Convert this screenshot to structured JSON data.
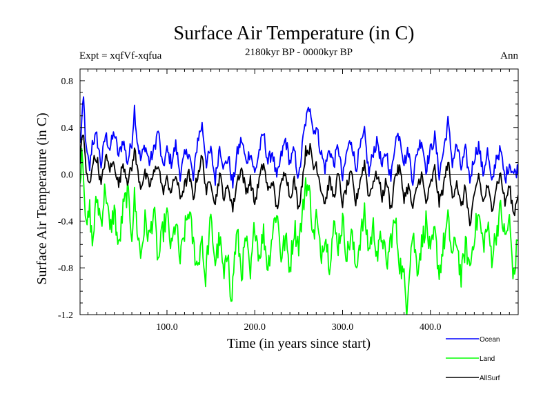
{
  "chart_data": {
    "type": "line",
    "title": "Surface Air Temperature (in C)",
    "subtitle": "2180kyr BP - 0000kyr BP",
    "experiment_label": "Expt = xqfVf-xqfua",
    "season_label": "Ann",
    "xlabel": "Time (in years since start)",
    "ylabel": "Surface Air Temperature (in C)",
    "xlim": [
      1,
      500
    ],
    "ylim": [
      -1.2,
      0.9
    ],
    "xticks": [
      100,
      200,
      300,
      400
    ],
    "xtick_labels": [
      "100.0",
      "200.0",
      "300.0",
      "400.0"
    ],
    "yticks": [
      0.8,
      0.4,
      0.0,
      -0.4,
      -0.8,
      -1.2
    ],
    "ytick_labels": [
      "0.8",
      "0.4",
      "0.0",
      "-0.4",
      "-0.8",
      "-1.2"
    ],
    "zero_line": 0.0,
    "grid": false,
    "legend_position": "bottom-right",
    "series": [
      {
        "name": "Ocean",
        "color": "#0000ff",
        "anchors": [
          [
            1,
            0.25
          ],
          [
            3,
            0.45
          ],
          [
            5,
            0.64
          ],
          [
            8,
            0.2
          ],
          [
            12,
            0.05
          ],
          [
            15,
            0.28
          ],
          [
            20,
            0.32
          ],
          [
            25,
            0.08
          ],
          [
            30,
            0.34
          ],
          [
            35,
            0.22
          ],
          [
            40,
            0.36
          ],
          [
            45,
            0.15
          ],
          [
            50,
            0.3
          ],
          [
            55,
            0.1
          ],
          [
            60,
            0.28
          ],
          [
            63,
            0.57
          ],
          [
            66,
            0.3
          ],
          [
            70,
            0.12
          ],
          [
            75,
            0.25
          ],
          [
            80,
            0.1
          ],
          [
            85,
            0.2
          ],
          [
            90,
            0.38
          ],
          [
            95,
            0.05
          ],
          [
            100,
            0.2
          ],
          [
            105,
            0.1
          ],
          [
            110,
            0.25
          ],
          [
            115,
            0.0
          ],
          [
            120,
            0.15
          ],
          [
            125,
            0.2
          ],
          [
            130,
            -0.05
          ],
          [
            135,
            0.3
          ],
          [
            140,
            0.42
          ],
          [
            145,
            0.1
          ],
          [
            150,
            0.2
          ],
          [
            155,
            -0.05
          ],
          [
            160,
            0.25
          ],
          [
            165,
            0.05
          ],
          [
            170,
            0.15
          ],
          [
            175,
            -0.1
          ],
          [
            180,
            0.18
          ],
          [
            185,
            0.3
          ],
          [
            190,
            0.1
          ],
          [
            195,
            0.2
          ],
          [
            200,
            0.0
          ],
          [
            205,
            0.2
          ],
          [
            210,
            0.35
          ],
          [
            215,
            0.1
          ],
          [
            220,
            0.2
          ],
          [
            225,
            -0.05
          ],
          [
            230,
            0.15
          ],
          [
            235,
            0.3
          ],
          [
            240,
            0.1
          ],
          [
            245,
            0.2
          ],
          [
            250,
            -0.05
          ],
          [
            255,
            0.3
          ],
          [
            258,
            0.45
          ],
          [
            263,
            0.6
          ],
          [
            267,
            0.35
          ],
          [
            270,
            0.42
          ],
          [
            275,
            0.2
          ],
          [
            280,
            0.05
          ],
          [
            285,
            0.22
          ],
          [
            290,
            0.08
          ],
          [
            295,
            0.25
          ],
          [
            300,
            -0.05
          ],
          [
            305,
            0.2
          ],
          [
            310,
            0.3
          ],
          [
            315,
            0.05
          ],
          [
            320,
            0.22
          ],
          [
            325,
            0.35
          ],
          [
            330,
            0.0
          ],
          [
            335,
            0.2
          ],
          [
            340,
            0.28
          ],
          [
            345,
            0.05
          ],
          [
            350,
            0.2
          ],
          [
            355,
            -0.05
          ],
          [
            360,
            0.3
          ],
          [
            365,
            0.35
          ],
          [
            370,
            0.1
          ],
          [
            375,
            0.2
          ],
          [
            380,
            -0.05
          ],
          [
            385,
            0.2
          ],
          [
            390,
            0.3
          ],
          [
            395,
            0.05
          ],
          [
            400,
            0.2
          ],
          [
            405,
            0.32
          ],
          [
            410,
            0.0
          ],
          [
            415,
            0.2
          ],
          [
            420,
            0.45
          ],
          [
            425,
            0.1
          ],
          [
            430,
            0.25
          ],
          [
            435,
            0.05
          ],
          [
            440,
            0.2
          ],
          [
            445,
            -0.05
          ],
          [
            450,
            0.15
          ],
          [
            455,
            0.25
          ],
          [
            460,
            0.0
          ],
          [
            465,
            0.2
          ],
          [
            470,
            -0.1
          ],
          [
            475,
            0.15
          ],
          [
            480,
            0.2
          ],
          [
            485,
            -0.05
          ],
          [
            490,
            0.1
          ],
          [
            495,
            0.0
          ],
          [
            500,
            0.05
          ]
        ]
      },
      {
        "name": "Land",
        "color": "#00ff00",
        "anchors": [
          [
            1,
            -0.1
          ],
          [
            3,
            0.25
          ],
          [
            5,
            0.05
          ],
          [
            8,
            -0.5
          ],
          [
            12,
            -0.3
          ],
          [
            15,
            -0.6
          ],
          [
            20,
            -0.2
          ],
          [
            25,
            -0.4
          ],
          [
            30,
            -0.1
          ],
          [
            35,
            -0.5
          ],
          [
            40,
            -0.3
          ],
          [
            45,
            -0.65
          ],
          [
            50,
            -0.3
          ],
          [
            55,
            -0.15
          ],
          [
            60,
            -0.5
          ],
          [
            63,
            -0.2
          ],
          [
            66,
            -0.45
          ],
          [
            70,
            -0.7
          ],
          [
            75,
            -0.4
          ],
          [
            80,
            -0.55
          ],
          [
            85,
            -0.3
          ],
          [
            90,
            -0.75
          ],
          [
            95,
            -0.5
          ],
          [
            100,
            -0.35
          ],
          [
            105,
            -0.65
          ],
          [
            110,
            -0.4
          ],
          [
            115,
            -0.75
          ],
          [
            120,
            -0.5
          ],
          [
            125,
            -0.3
          ],
          [
            130,
            -0.6
          ],
          [
            135,
            -0.8
          ],
          [
            140,
            -0.5
          ],
          [
            143,
            -0.95
          ],
          [
            147,
            -0.6
          ],
          [
            150,
            -0.4
          ],
          [
            155,
            -0.75
          ],
          [
            160,
            -0.55
          ],
          [
            165,
            -0.9
          ],
          [
            170,
            -0.6
          ],
          [
            173,
            -1.15
          ],
          [
            177,
            -0.7
          ],
          [
            180,
            -0.5
          ],
          [
            185,
            -0.85
          ],
          [
            190,
            -0.55
          ],
          [
            195,
            -0.9
          ],
          [
            200,
            -0.4
          ],
          [
            205,
            -0.7
          ],
          [
            210,
            -0.5
          ],
          [
            215,
            -0.8
          ],
          [
            220,
            -0.5
          ],
          [
            225,
            -0.3
          ],
          [
            230,
            -0.7
          ],
          [
            235,
            -0.55
          ],
          [
            240,
            -0.8
          ],
          [
            245,
            -0.45
          ],
          [
            250,
            -0.6
          ],
          [
            255,
            -0.3
          ],
          [
            258,
            -0.05
          ],
          [
            263,
            -0.2
          ],
          [
            267,
            -0.55
          ],
          [
            270,
            -0.35
          ],
          [
            275,
            -0.7
          ],
          [
            280,
            -0.5
          ],
          [
            285,
            -0.75
          ],
          [
            290,
            -0.45
          ],
          [
            295,
            -0.6
          ],
          [
            300,
            -0.4
          ],
          [
            305,
            -0.7
          ],
          [
            310,
            -0.5
          ],
          [
            315,
            -0.8
          ],
          [
            320,
            -0.55
          ],
          [
            325,
            -0.35
          ],
          [
            330,
            -0.65
          ],
          [
            335,
            -0.45
          ],
          [
            340,
            -0.7
          ],
          [
            345,
            -0.5
          ],
          [
            350,
            -0.8
          ],
          [
            355,
            -0.55
          ],
          [
            360,
            -0.4
          ],
          [
            365,
            -0.75
          ],
          [
            370,
            -0.9
          ],
          [
            373,
            -1.12
          ],
          [
            377,
            -0.7
          ],
          [
            380,
            -0.5
          ],
          [
            385,
            -0.8
          ],
          [
            390,
            -0.6
          ],
          [
            395,
            -0.4
          ],
          [
            400,
            -0.7
          ],
          [
            405,
            -0.5
          ],
          [
            410,
            -0.85
          ],
          [
            415,
            -0.6
          ],
          [
            420,
            -0.4
          ],
          [
            425,
            -0.7
          ],
          [
            430,
            -0.55
          ],
          [
            435,
            -0.9
          ],
          [
            440,
            -0.6
          ],
          [
            445,
            -0.8
          ],
          [
            450,
            -0.5
          ],
          [
            455,
            -0.35
          ],
          [
            460,
            -0.6
          ],
          [
            465,
            -0.45
          ],
          [
            470,
            -0.7
          ],
          [
            475,
            -0.5
          ],
          [
            480,
            -0.3
          ],
          [
            485,
            -0.55
          ],
          [
            490,
            -0.4
          ],
          [
            495,
            -0.9
          ],
          [
            500,
            -0.5
          ]
        ]
      },
      {
        "name": "AllSurf",
        "color": "#000000",
        "anchors": [
          [
            1,
            0.1
          ],
          [
            3,
            0.3
          ],
          [
            5,
            0.35
          ],
          [
            8,
            0.0
          ],
          [
            12,
            -0.1
          ],
          [
            15,
            0.1
          ],
          [
            20,
            0.15
          ],
          [
            25,
            -0.1
          ],
          [
            30,
            0.15
          ],
          [
            35,
            0.05
          ],
          [
            40,
            0.1
          ],
          [
            45,
            -0.1
          ],
          [
            50,
            0.1
          ],
          [
            55,
            -0.05
          ],
          [
            60,
            0.05
          ],
          [
            63,
            0.22
          ],
          [
            66,
            0.05
          ],
          [
            70,
            -0.1
          ],
          [
            75,
            0.0
          ],
          [
            80,
            -0.1
          ],
          [
            85,
            0.0
          ],
          [
            90,
            0.1
          ],
          [
            95,
            -0.15
          ],
          [
            100,
            -0.05
          ],
          [
            105,
            -0.15
          ],
          [
            110,
            0.0
          ],
          [
            115,
            -0.2
          ],
          [
            120,
            -0.1
          ],
          [
            125,
            0.0
          ],
          [
            130,
            -0.2
          ],
          [
            135,
            0.0
          ],
          [
            140,
            0.15
          ],
          [
            145,
            -0.15
          ],
          [
            150,
            -0.05
          ],
          [
            155,
            -0.25
          ],
          [
            160,
            0.0
          ],
          [
            165,
            -0.2
          ],
          [
            170,
            -0.1
          ],
          [
            175,
            -0.3
          ],
          [
            180,
            -0.05
          ],
          [
            185,
            0.05
          ],
          [
            190,
            -0.15
          ],
          [
            195,
            -0.05
          ],
          [
            200,
            -0.25
          ],
          [
            205,
            -0.05
          ],
          [
            210,
            0.1
          ],
          [
            215,
            -0.15
          ],
          [
            220,
            -0.05
          ],
          [
            225,
            -0.3
          ],
          [
            230,
            -0.1
          ],
          [
            235,
            0.05
          ],
          [
            240,
            -0.2
          ],
          [
            245,
            -0.05
          ],
          [
            250,
            -0.3
          ],
          [
            255,
            0.0
          ],
          [
            258,
            0.2
          ],
          [
            263,
            0.22
          ],
          [
            267,
            0.05
          ],
          [
            270,
            0.1
          ],
          [
            275,
            -0.1
          ],
          [
            280,
            -0.25
          ],
          [
            285,
            -0.05
          ],
          [
            290,
            -0.2
          ],
          [
            295,
            0.0
          ],
          [
            300,
            -0.25
          ],
          [
            305,
            -0.1
          ],
          [
            310,
            0.0
          ],
          [
            315,
            -0.25
          ],
          [
            320,
            -0.05
          ],
          [
            325,
            0.1
          ],
          [
            330,
            -0.2
          ],
          [
            335,
            -0.05
          ],
          [
            340,
            0.0
          ],
          [
            345,
            -0.2
          ],
          [
            350,
            -0.05
          ],
          [
            355,
            -0.3
          ],
          [
            360,
            0.0
          ],
          [
            365,
            0.05
          ],
          [
            370,
            -0.2
          ],
          [
            375,
            -0.1
          ],
          [
            380,
            -0.3
          ],
          [
            385,
            -0.1
          ],
          [
            390,
            0.0
          ],
          [
            395,
            -0.25
          ],
          [
            400,
            -0.1
          ],
          [
            405,
            0.05
          ],
          [
            410,
            -0.25
          ],
          [
            415,
            -0.1
          ],
          [
            420,
            0.12
          ],
          [
            425,
            -0.2
          ],
          [
            430,
            -0.05
          ],
          [
            435,
            -0.3
          ],
          [
            440,
            -0.1
          ],
          [
            445,
            -0.45
          ],
          [
            450,
            -0.2
          ],
          [
            455,
            0.0
          ],
          [
            460,
            -0.25
          ],
          [
            465,
            -0.1
          ],
          [
            470,
            -0.3
          ],
          [
            475,
            -0.1
          ],
          [
            480,
            0.0
          ],
          [
            485,
            -0.25
          ],
          [
            490,
            -0.1
          ],
          [
            495,
            -0.35
          ],
          [
            500,
            -0.15
          ]
        ]
      }
    ]
  }
}
